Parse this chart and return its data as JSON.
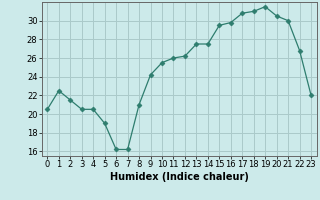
{
  "x": [
    0,
    1,
    2,
    3,
    4,
    5,
    6,
    7,
    8,
    9,
    10,
    11,
    12,
    13,
    14,
    15,
    16,
    17,
    18,
    19,
    20,
    21,
    22,
    23
  ],
  "y": [
    20.5,
    22.5,
    21.5,
    20.5,
    20.5,
    19.0,
    16.2,
    16.2,
    21.0,
    24.2,
    25.5,
    26.0,
    26.2,
    27.5,
    27.5,
    29.5,
    29.8,
    30.8,
    31.0,
    31.5,
    30.5,
    30.0,
    26.8,
    22.0
  ],
  "line_color": "#2e7d6e",
  "marker": "D",
  "marker_size": 2.5,
  "bg_color": "#cceaea",
  "grid_color": "#aacaca",
  "xlabel": "Humidex (Indice chaleur)",
  "ylim": [
    15.5,
    32
  ],
  "xlim": [
    -0.5,
    23.5
  ],
  "yticks": [
    16,
    18,
    20,
    22,
    24,
    26,
    28,
    30
  ],
  "xticks": [
    0,
    1,
    2,
    3,
    4,
    5,
    6,
    7,
    8,
    9,
    10,
    11,
    12,
    13,
    14,
    15,
    16,
    17,
    18,
    19,
    20,
    21,
    22,
    23
  ],
  "xtick_labels": [
    "0",
    "1",
    "2",
    "3",
    "4",
    "5",
    "6",
    "7",
    "8",
    "9",
    "10",
    "11",
    "12",
    "13",
    "14",
    "15",
    "16",
    "17",
    "18",
    "19",
    "20",
    "21",
    "22",
    "23"
  ]
}
